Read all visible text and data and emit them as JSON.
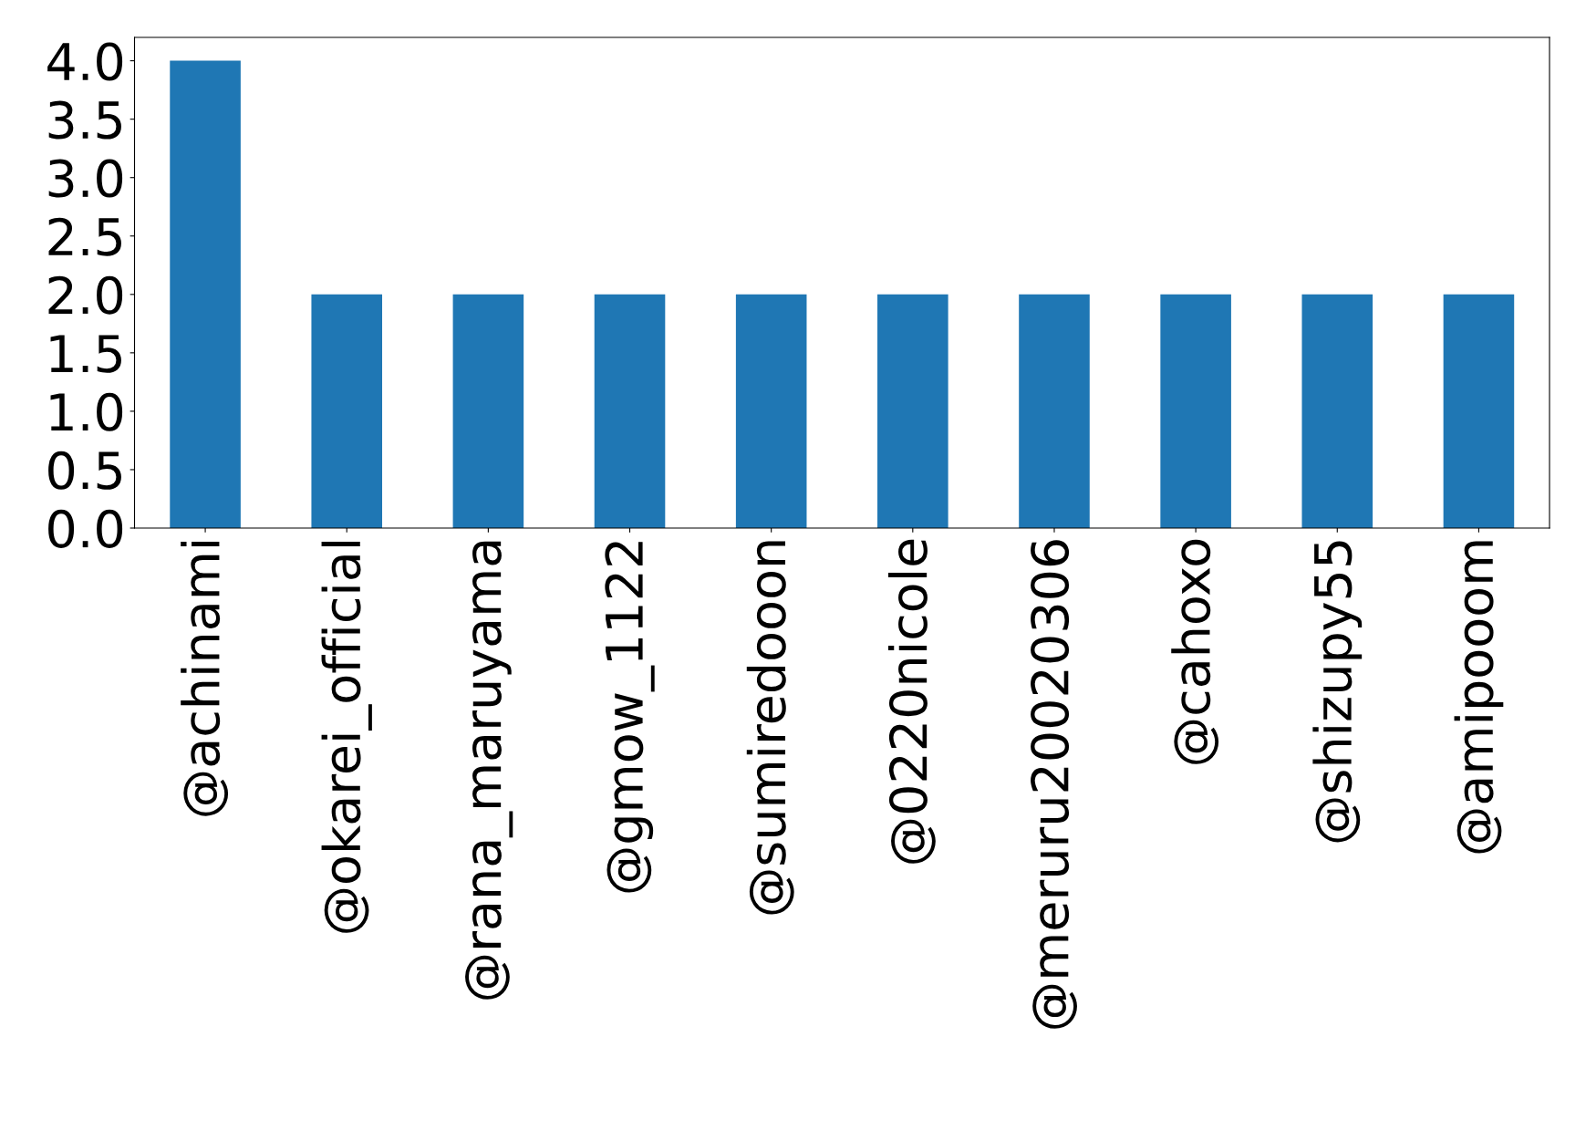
{
  "chart_data": {
    "type": "bar",
    "categories": [
      "@achinami",
      "@okarei_official",
      "@rana_maruyama",
      "@gmow_1122",
      "@sumiredooon",
      "@0220nicole",
      "@meruru20020306",
      "@cahoxo",
      "@shizupy55",
      "@amipooom"
    ],
    "values": [
      4,
      2,
      2,
      2,
      2,
      2,
      2,
      2,
      2,
      2
    ],
    "color": "#1f77b4",
    "ylim": [
      0,
      4.2
    ],
    "yticks": [
      {
        "value": 0,
        "label": "0.0"
      },
      {
        "value": 0.5,
        "label": "0.5"
      },
      {
        "value": 1,
        "label": "1.0"
      },
      {
        "value": 1.5,
        "label": "1.5"
      },
      {
        "value": 2,
        "label": "2.0"
      },
      {
        "value": 2.5,
        "label": "2.5"
      },
      {
        "value": 3,
        "label": "3.0"
      },
      {
        "value": 3.5,
        "label": "3.5"
      },
      {
        "value": 4,
        "label": "4.0"
      }
    ],
    "grid": false,
    "legend": false
  }
}
